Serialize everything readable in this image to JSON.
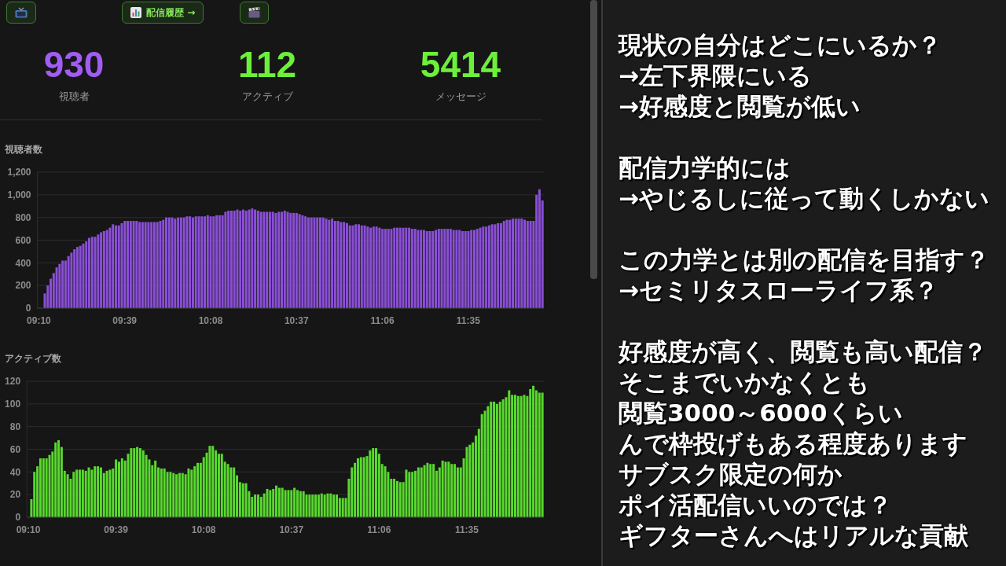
{
  "chart_data": [
    {
      "type": "other",
      "categories": [
        "視聴者",
        "アクティブ",
        "メッセージ"
      ],
      "values": [
        930,
        112,
        5414
      ],
      "data_labels": true,
      "colors": [
        "#a25cf5",
        "#6cf03a",
        "#6cf03a"
      ],
      "annotations": [
        "配信履歴 →"
      ]
    },
    {
      "type": "bar",
      "title": "視聴者数",
      "color": "#8a4fd6",
      "ylim": [
        0,
        1200
      ],
      "yticks": [
        0,
        200,
        400,
        600,
        800,
        {
          "value": 1000,
          "label": "1,000"
        },
        {
          "value": 1200,
          "label": "1,200"
        }
      ],
      "grid": "y",
      "categories": [
        "09:10",
        null,
        null,
        null,
        null,
        null,
        null,
        null,
        null,
        null,
        null,
        null,
        null,
        null,
        null,
        null,
        null,
        null,
        null,
        null,
        null,
        null,
        null,
        null,
        null,
        null,
        null,
        null,
        null,
        "09:39",
        null,
        null,
        null,
        null,
        null,
        null,
        null,
        null,
        null,
        null,
        null,
        null,
        null,
        null,
        null,
        null,
        null,
        null,
        null,
        null,
        null,
        null,
        null,
        null,
        null,
        null,
        null,
        null,
        "10:08",
        null,
        null,
        null,
        null,
        null,
        null,
        null,
        null,
        null,
        null,
        null,
        null,
        null,
        null,
        null,
        null,
        null,
        null,
        null,
        null,
        null,
        null,
        null,
        null,
        null,
        null,
        null,
        null,
        "10:37",
        null,
        null,
        null,
        null,
        null,
        null,
        null,
        null,
        null,
        null,
        null,
        null,
        null,
        null,
        null,
        null,
        null,
        null,
        null,
        null,
        null,
        null,
        null,
        null,
        null,
        null,
        null,
        null,
        "11:06",
        null,
        null,
        null,
        null,
        null,
        null,
        null,
        null,
        null,
        null,
        null,
        null,
        null,
        null,
        null,
        null,
        null,
        null,
        null,
        null,
        null,
        null,
        null,
        null,
        null,
        null,
        null,
        null,
        "11:35",
        null,
        null,
        null,
        null,
        null,
        null,
        null,
        null,
        null,
        null,
        null,
        null,
        null,
        null,
        null,
        null,
        null,
        null,
        null,
        null,
        null,
        null,
        null,
        null,
        null
      ],
      "values": [
        null,
        null,
        130,
        200,
        260,
        310,
        360,
        390,
        420,
        420,
        460,
        490,
        520,
        540,
        550,
        570,
        590,
        620,
        630,
        630,
        650,
        670,
        680,
        690,
        710,
        740,
        730,
        730,
        750,
        770,
        770,
        770,
        770,
        770,
        760,
        760,
        760,
        760,
        760,
        760,
        760,
        770,
        780,
        800,
        800,
        800,
        790,
        800,
        800,
        800,
        810,
        810,
        800,
        810,
        810,
        810,
        810,
        820,
        810,
        810,
        820,
        820,
        820,
        850,
        860,
        860,
        860,
        870,
        860,
        870,
        860,
        870,
        880,
        870,
        860,
        850,
        850,
        850,
        850,
        850,
        840,
        850,
        850,
        860,
        850,
        840,
        840,
        840,
        830,
        820,
        810,
        800,
        800,
        800,
        800,
        800,
        800,
        790,
        780,
        790,
        770,
        770,
        760,
        760,
        750,
        730,
        730,
        740,
        740,
        730,
        730,
        720,
        710,
        720,
        720,
        710,
        700,
        700,
        700,
        700,
        710,
        710,
        710,
        710,
        710,
        710,
        700,
        700,
        690,
        690,
        690,
        680,
        680,
        680,
        690,
        700,
        700,
        700,
        700,
        700,
        690,
        690,
        690,
        680,
        680,
        680,
        690,
        690,
        700,
        710,
        720,
        720,
        730,
        740,
        740,
        750,
        750,
        770,
        780,
        780,
        790,
        790,
        790,
        790,
        780,
        770,
        770,
        770,
        1000,
        1050,
        950
      ]
    },
    {
      "type": "bar",
      "title": "アクティブ数",
      "color": "#59d92e",
      "ylim": [
        0,
        120
      ],
      "yticks": [
        0,
        20,
        40,
        60,
        80,
        100,
        120
      ],
      "grid": "y",
      "categories": [
        "09:10",
        null,
        null,
        null,
        null,
        null,
        null,
        null,
        null,
        null,
        null,
        null,
        null,
        null,
        null,
        null,
        null,
        null,
        null,
        null,
        null,
        null,
        null,
        null,
        null,
        null,
        null,
        null,
        null,
        "09:39",
        null,
        null,
        null,
        null,
        null,
        null,
        null,
        null,
        null,
        null,
        null,
        null,
        null,
        null,
        null,
        null,
        null,
        null,
        null,
        null,
        null,
        null,
        null,
        null,
        null,
        null,
        null,
        null,
        "10:08",
        null,
        null,
        null,
        null,
        null,
        null,
        null,
        null,
        null,
        null,
        null,
        null,
        null,
        null,
        null,
        null,
        null,
        null,
        null,
        null,
        null,
        null,
        null,
        null,
        null,
        null,
        null,
        null,
        "10:37",
        null,
        null,
        null,
        null,
        null,
        null,
        null,
        null,
        null,
        null,
        null,
        null,
        null,
        null,
        null,
        null,
        null,
        null,
        null,
        null,
        null,
        null,
        null,
        null,
        null,
        null,
        null,
        null,
        "11:06",
        null,
        null,
        null,
        null,
        null,
        null,
        null,
        null,
        null,
        null,
        null,
        null,
        null,
        null,
        null,
        null,
        null,
        null,
        null,
        null,
        null,
        null,
        null,
        null,
        null,
        null,
        null,
        null,
        "11:35",
        null,
        null,
        null,
        null,
        null,
        null,
        null,
        null,
        null,
        null,
        null,
        null,
        null,
        null,
        null,
        null,
        null,
        null,
        null,
        null,
        null,
        null,
        null,
        null,
        null
      ],
      "values": [
        null,
        16,
        40,
        45,
        52,
        52,
        52,
        55,
        58,
        66,
        68,
        62,
        41,
        38,
        34,
        40,
        42,
        42,
        42,
        41,
        44,
        42,
        45,
        45,
        44,
        39,
        41,
        42,
        43,
        51,
        49,
        52,
        50,
        56,
        61,
        61,
        62,
        61,
        59,
        55,
        51,
        46,
        50,
        44,
        43,
        43,
        40,
        40,
        39,
        38,
        39,
        39,
        38,
        43,
        42,
        45,
        48,
        48,
        53,
        57,
        63,
        63,
        59,
        56,
        56,
        49,
        47,
        44,
        44,
        37,
        31,
        30,
        30,
        23,
        18,
        20,
        20,
        18,
        21,
        25,
        24,
        25,
        28,
        26,
        26,
        24,
        24,
        24,
        26,
        24,
        23,
        23,
        20,
        20,
        20,
        20,
        20,
        21,
        20,
        21,
        21,
        20,
        20,
        17,
        17,
        17,
        34,
        44,
        48,
        52,
        53,
        53,
        54,
        59,
        61,
        61,
        56,
        47,
        45,
        40,
        34,
        34,
        32,
        31,
        31,
        42,
        40,
        40,
        41,
        44,
        44,
        46,
        48,
        47,
        47,
        41,
        44,
        50,
        49,
        49,
        47,
        47,
        44,
        44,
        52,
        62,
        64,
        66,
        72,
        78,
        91,
        94,
        98,
        102,
        102,
        100,
        102,
        104,
        106,
        112,
        108,
        108,
        107,
        107,
        108,
        107,
        113,
        116,
        112,
        110,
        110
      ]
    },
    {
      "type": "other",
      "annotations": [
        "現状の自分はどこにいるか？",
        "→左下界隈にいる",
        "→好感度と閲覧が低い"
      ]
    },
    {
      "type": "other",
      "annotations": [
        "配信力学的には",
        "→やじるしに従って動くしかない"
      ]
    },
    {
      "type": "other",
      "annotations": [
        "この力学とは別の配信を目指す？",
        "→セミリタスローライフ系？"
      ]
    },
    {
      "type": "other",
      "annotations": [
        "好感度が高く、閲覧も高い配信？",
        "そこまでいかなくとも",
        "閲覧3000～6000くらい",
        "んで枠投げもある程度あります",
        "サブスク限定の何か",
        "ポイ活配信いいのでは？",
        "ギフターさんへはリアルな貢献"
      ]
    }
  ]
}
